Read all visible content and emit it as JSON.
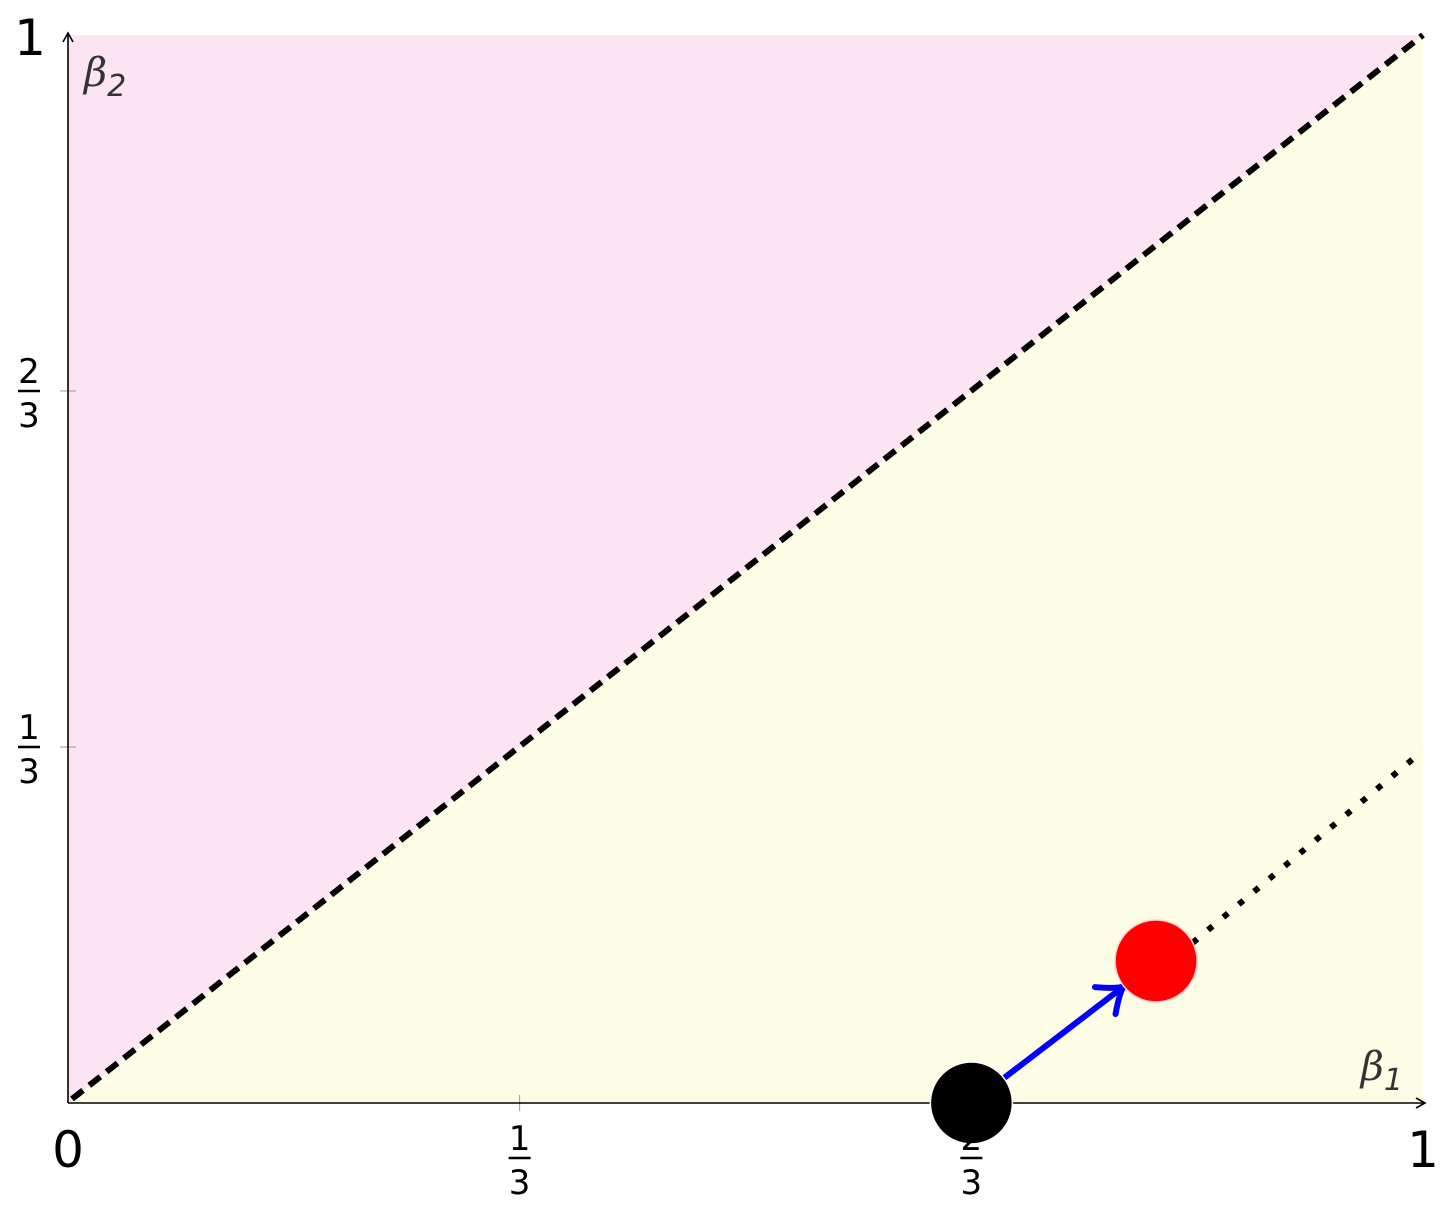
{
  "colors": {
    "upper_region": "#fce4f3",
    "lower_region": "#fdfce4",
    "axis": "#000000",
    "boundary": "#000000",
    "arrow": "#0000ff",
    "start_point": "#000000",
    "end_point": "#ff0000"
  },
  "axes": {
    "x": {
      "name": "β",
      "subscript": "1",
      "range": [
        0,
        1
      ],
      "ticks": [
        {
          "value": 0,
          "label": "0"
        },
        {
          "value": 0.3333,
          "numerator": "1",
          "denominator": "3"
        },
        {
          "value": 0.6667,
          "numerator": "2",
          "denominator": "3"
        },
        {
          "value": 1,
          "label": "1"
        }
      ]
    },
    "y": {
      "name": "β",
      "subscript": "2",
      "range": [
        0,
        1
      ],
      "ticks": [
        {
          "value": 0.3333,
          "numerator": "1",
          "denominator": "3"
        },
        {
          "value": 0.6667,
          "numerator": "2",
          "denominator": "3"
        },
        {
          "value": 1,
          "label": "1"
        }
      ]
    }
  },
  "chart_data": {
    "type": "scatter",
    "dashed_boundary": [
      [
        0,
        0
      ],
      [
        1,
        1
      ]
    ],
    "dotted_line": [
      [
        0.83,
        0.15
      ],
      [
        1,
        0.33
      ]
    ],
    "start_point": {
      "x": 0.6667,
      "y": 0
    },
    "end_point": {
      "x": 0.803,
      "y": 0.133
    },
    "arrow": {
      "from": [
        0.6667,
        0
      ],
      "to": [
        0.78,
        0.11
      ]
    }
  }
}
